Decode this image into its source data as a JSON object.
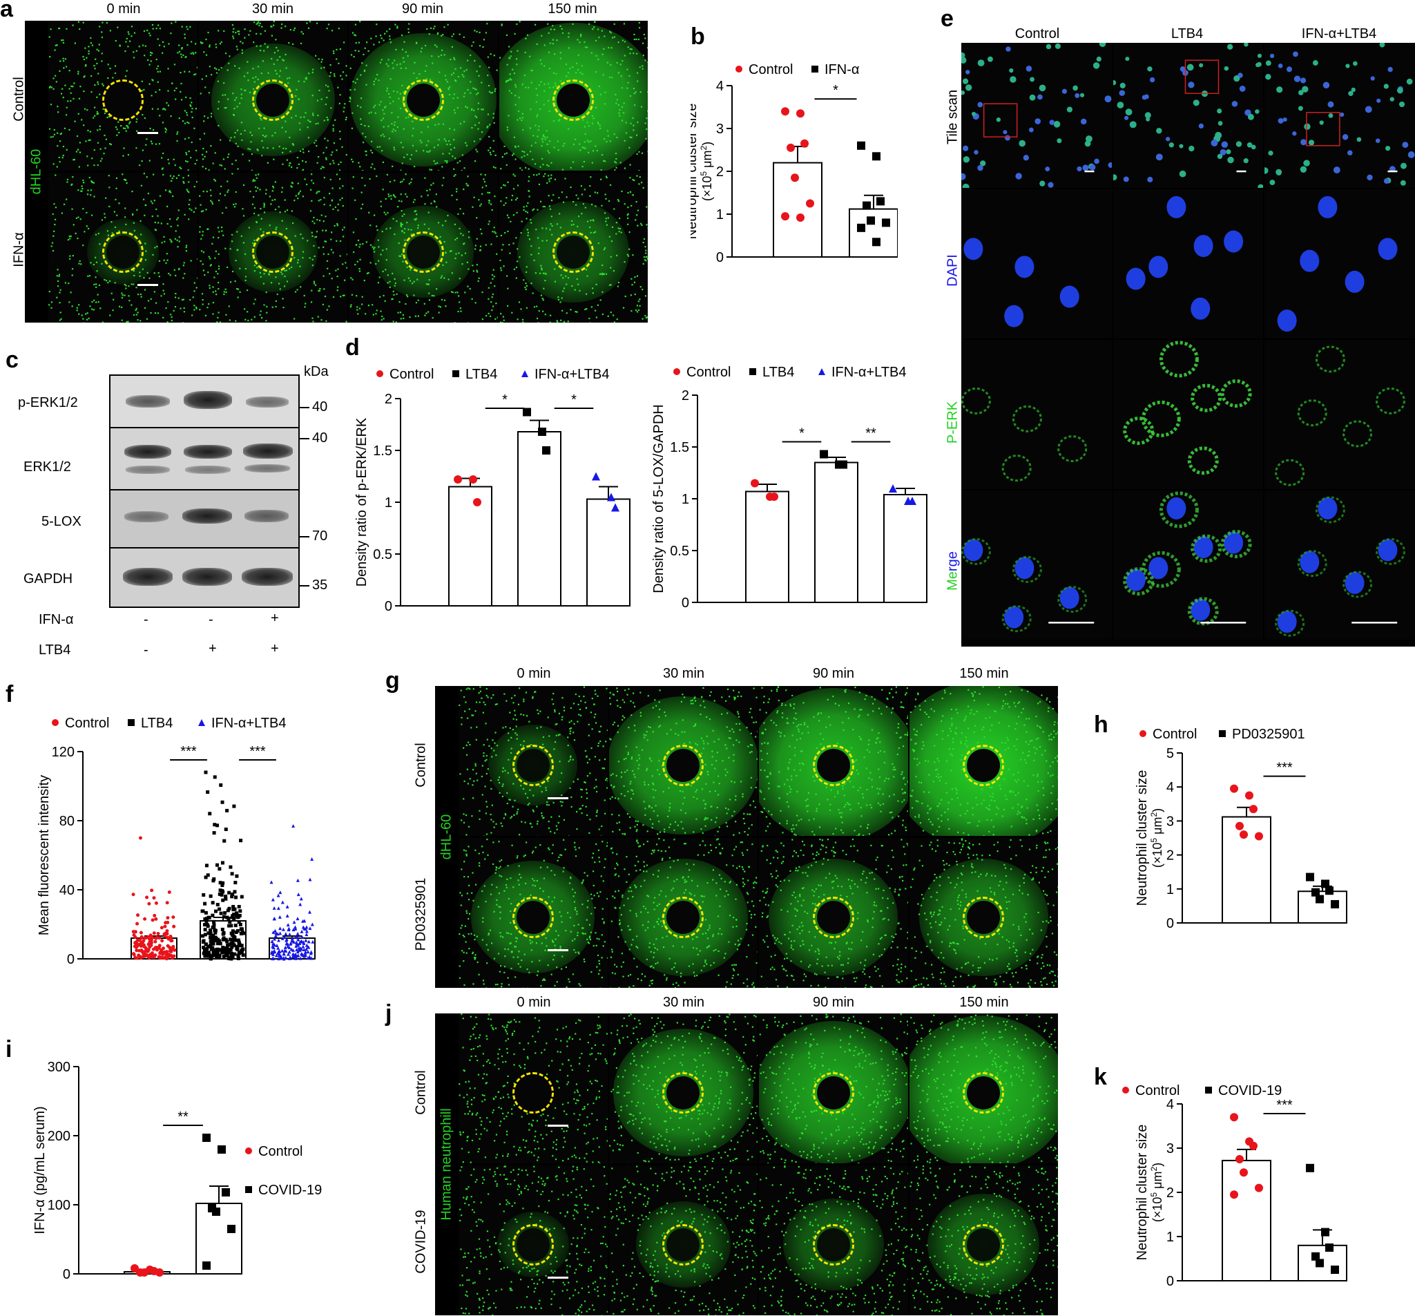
{
  "panel_a": {
    "label": "a",
    "time_points": [
      "0 min",
      "30 min",
      "90 min",
      "150 min"
    ],
    "rows": [
      "Control",
      "IFN-α"
    ],
    "stain_label": "dHL-60"
  },
  "panel_b": {
    "label": "b"
  },
  "panel_c": {
    "label": "c",
    "unit": "kDa",
    "proteins": [
      "p-ERK1/2",
      "ERK1/2",
      "5-LOX",
      "GAPDH"
    ],
    "markers": [
      "40",
      "40",
      "70",
      "35"
    ],
    "treatments": [
      {
        "name": "IFN-α",
        "values": [
          "-",
          "-",
          "+"
        ]
      },
      {
        "name": "LTB4",
        "values": [
          "-",
          "+",
          "+"
        ]
      }
    ]
  },
  "panel_d": {
    "label": "d"
  },
  "panel_e": {
    "label": "e",
    "columns": [
      "Control",
      "LTB4",
      "IFN-α+LTB4"
    ],
    "rows": [
      "Tile scan",
      "DAPI",
      "P-ERK",
      "Merge"
    ],
    "merge_label_parts": [
      "Me",
      "rge"
    ]
  },
  "panel_f": {
    "label": "f"
  },
  "panel_g": {
    "label": "g",
    "time_points": [
      "0 min",
      "30 min",
      "90 min",
      "150 min"
    ],
    "rows": [
      "Control",
      "PD0325901"
    ],
    "stain_label": "dHL-60"
  },
  "panel_h": {
    "label": "h"
  },
  "panel_i": {
    "label": "i"
  },
  "panel_j": {
    "label": "j",
    "time_points": [
      "0 min",
      "30 min",
      "90 min",
      "150 min"
    ],
    "rows": [
      "Control",
      "COVID-19"
    ],
    "stain_label": "Human neutrophill"
  },
  "panel_k": {
    "label": "k"
  },
  "chart_data": [
    {
      "id": "b",
      "type": "bar",
      "categories": [
        "Control",
        "IFN-α"
      ],
      "series": [
        {
          "name": "Control",
          "color": "#e8141b",
          "marker": "circle",
          "mean": 2.2,
          "sem": 0.38,
          "points": [
            3.4,
            3.35,
            2.65,
            2.55,
            1.85,
            1.25,
            0.95,
            0.92
          ]
        },
        {
          "name": "IFN-α",
          "color": "#000000",
          "marker": "square",
          "mean": 1.12,
          "sem": 0.32,
          "points": [
            2.6,
            2.35,
            1.3,
            1.2,
            0.85,
            0.8,
            0.68,
            0.35
          ]
        }
      ],
      "ylabel": "Neutrophil cluster size",
      "yunit_parts": [
        "(×10",
        "5",
        " μm",
        "2",
        ")"
      ],
      "ylim": [
        0,
        4
      ],
      "yticks": [
        "0",
        "1",
        "2",
        "3",
        "4"
      ],
      "significance": [
        {
          "from": 0,
          "to": 1,
          "label": "*"
        }
      ]
    },
    {
      "id": "d1",
      "type": "bar",
      "categories": [
        "Control",
        "LTB4",
        "IFN-α+LTB4"
      ],
      "series": [
        {
          "name": "Control",
          "color": "#e8141b",
          "marker": "circle",
          "mean": 1.15,
          "sem": 0.08,
          "points": [
            1.22,
            1.22,
            1.0
          ]
        },
        {
          "name": "LTB4",
          "color": "#000000",
          "marker": "square",
          "mean": 1.68,
          "sem": 0.11,
          "points": [
            1.87,
            1.68,
            1.5
          ]
        },
        {
          "name": "IFN-α+LTB4",
          "color": "#1717e6",
          "marker": "triangle",
          "mean": 1.03,
          "sem": 0.12,
          "points": [
            1.25,
            1.05,
            0.95
          ]
        }
      ],
      "ylabel": "Density ratio of p-ERK/ERK",
      "ylim": [
        0,
        2
      ],
      "yticks": [
        "0",
        "0.5",
        "1",
        "1.5",
        "2"
      ],
      "significance": [
        {
          "from": 0,
          "to": 1,
          "label": "*"
        },
        {
          "from": 1,
          "to": 2,
          "label": "*"
        }
      ]
    },
    {
      "id": "d2",
      "type": "bar",
      "categories": [
        "Control",
        "LTB4",
        "IFN-α+LTB4"
      ],
      "series": [
        {
          "name": "Control",
          "color": "#e8141b",
          "marker": "circle",
          "mean": 1.07,
          "sem": 0.07,
          "points": [
            1.15,
            1.02,
            1.02
          ]
        },
        {
          "name": "LTB4",
          "color": "#000000",
          "marker": "square",
          "mean": 1.35,
          "sem": 0.05,
          "points": [
            1.43,
            1.33,
            1.33
          ]
        },
        {
          "name": "IFN-α+LTB4",
          "color": "#1717e6",
          "marker": "triangle",
          "mean": 1.04,
          "sem": 0.06,
          "points": [
            1.1,
            0.98,
            0.98
          ]
        }
      ],
      "ylabel": "Density ratio of 5-LOX/GAPDH",
      "ylim": [
        0,
        2
      ],
      "yticks": [
        "0",
        "0.5",
        "1",
        "1.5",
        "2"
      ],
      "significance": [
        {
          "from": 0,
          "to": 1,
          "label": "*"
        },
        {
          "from": 1,
          "to": 2,
          "label": "**"
        }
      ]
    },
    {
      "id": "f",
      "type": "scatter",
      "categories": [
        "Control",
        "LTB4",
        "IFN-α+LTB4"
      ],
      "series": [
        {
          "name": "Control",
          "color": "#e8141b",
          "marker": "circle",
          "mean": 12,
          "sem": 1.2,
          "n": 170,
          "max": 70
        },
        {
          "name": "LTB4",
          "color": "#000000",
          "marker": "square",
          "mean": 22,
          "sem": 2.0,
          "n": 260,
          "max": 108
        },
        {
          "name": "IFN-α+LTB4",
          "color": "#1717e6",
          "marker": "triangle",
          "mean": 12,
          "sem": 1.2,
          "n": 170,
          "max": 77
        }
      ],
      "ylabel": "Mean fluorescent intensity",
      "ylim": [
        0,
        120
      ],
      "yticks": [
        "0",
        "40",
        "80",
        "120"
      ],
      "significance": [
        {
          "from": 0,
          "to": 1,
          "label": "***"
        },
        {
          "from": 1,
          "to": 2,
          "label": "***"
        }
      ]
    },
    {
      "id": "h",
      "type": "bar",
      "categories": [
        "Control",
        "PD0325901"
      ],
      "series": [
        {
          "name": "Control",
          "color": "#e8141b",
          "marker": "circle",
          "mean": 3.12,
          "sem": 0.28,
          "points": [
            3.95,
            3.75,
            3.35,
            2.85,
            2.6,
            2.55
          ]
        },
        {
          "name": "PD0325901",
          "color": "#000000",
          "marker": "square",
          "mean": 0.93,
          "sem": 0.15,
          "points": [
            1.35,
            1.15,
            0.95,
            0.9,
            0.7,
            0.55
          ]
        }
      ],
      "ylabel": "Neutrophil cluster size",
      "yunit_parts": [
        "(×10",
        "5",
        " μm",
        "2",
        ")"
      ],
      "ylim": [
        0,
        5
      ],
      "yticks": [
        "0",
        "1",
        "2",
        "3",
        "4",
        "5"
      ],
      "significance": [
        {
          "from": 0,
          "to": 1,
          "label": "***"
        }
      ]
    },
    {
      "id": "i",
      "type": "bar",
      "categories": [
        "Control",
        "COVID-19"
      ],
      "series": [
        {
          "name": "Control",
          "color": "#e8141b",
          "marker": "circle",
          "mean": 3,
          "sem": 1.5,
          "points": [
            8,
            6,
            4,
            2,
            2,
            2
          ]
        },
        {
          "name": "COVID-19",
          "color": "#000000",
          "marker": "square",
          "mean": 102,
          "sem": 25,
          "points": [
            197,
            180,
            118,
            95,
            90,
            65,
            12
          ]
        }
      ],
      "ylabel": "IFN-α (pg/mL serum)",
      "ylim": [
        0,
        300
      ],
      "yticks": [
        "0",
        "100",
        "200",
        "300"
      ],
      "significance": [
        {
          "from": 0,
          "to": 1,
          "label": "**"
        }
      ]
    },
    {
      "id": "k",
      "type": "bar",
      "categories": [
        "Control",
        "COVID-19"
      ],
      "series": [
        {
          "name": "Control",
          "color": "#e8141b",
          "marker": "circle",
          "mean": 2.72,
          "sem": 0.25,
          "points": [
            3.7,
            3.15,
            3.05,
            2.75,
            2.45,
            2.1,
            1.95
          ]
        },
        {
          "name": "COVID-19",
          "color": "#000000",
          "marker": "square",
          "mean": 0.8,
          "sem": 0.35,
          "points": [
            2.55,
            1.1,
            0.75,
            0.55,
            0.4,
            0.25
          ]
        }
      ],
      "ylabel": "Neutrophil cluster size",
      "yunit_parts": [
        "(×10",
        "5",
        " μm",
        "2",
        ")"
      ],
      "ylim": [
        0,
        4
      ],
      "yticks": [
        "0",
        "1",
        "2",
        "3",
        "4"
      ],
      "significance": [
        {
          "from": 0,
          "to": 1,
          "label": "***"
        }
      ]
    }
  ]
}
